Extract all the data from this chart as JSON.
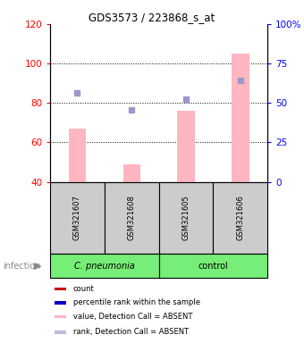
{
  "title": "GDS3573 / 223868_s_at",
  "samples": [
    "GSM321607",
    "GSM321608",
    "GSM321605",
    "GSM321606"
  ],
  "bar_tops": [
    67,
    49,
    76,
    105
  ],
  "bar_bottom": 40,
  "blue_squares": [
    85,
    76.5,
    82,
    91.5
  ],
  "ylim_left": [
    40,
    120
  ],
  "ylim_right": [
    0,
    100
  ],
  "yticks_left": [
    40,
    60,
    80,
    100,
    120
  ],
  "yticks_right": [
    0,
    25,
    50,
    75,
    100
  ],
  "ytick_labels_right": [
    "0",
    "25",
    "50",
    "75",
    "100%"
  ],
  "bar_color": "#ffb6c1",
  "blue_sq_color": "#9999cc",
  "cell_bg": "#cccccc",
  "group_bg_cpneumonia": "#77ee77",
  "group_bg_control": "#77ee77",
  "legend_colors": [
    "#cc0000",
    "#0000cc",
    "#ffb6c1",
    "#bbbbdd"
  ],
  "legend_labels": [
    "count",
    "percentile rank within the sample",
    "value, Detection Call = ABSENT",
    "rank, Detection Call = ABSENT"
  ]
}
